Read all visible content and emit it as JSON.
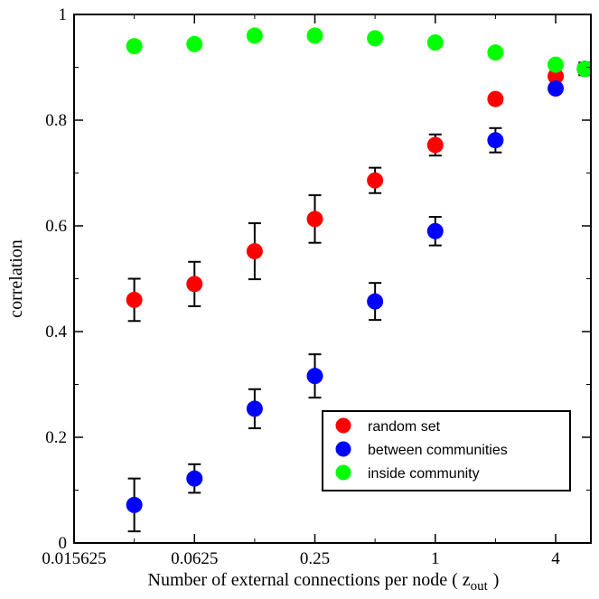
{
  "chart_data": {
    "type": "scatter",
    "title": "",
    "xlabel": "Number of external connections per node ( z",
    "xlabel_sub": "out",
    "xlabel_close": ")",
    "ylabel": "correlation",
    "xscale": "log2",
    "xlim": [
      0.015625,
      6
    ],
    "ylim": [
      0,
      1
    ],
    "xticks": [
      {
        "value": 0.015625,
        "label": "0.015625"
      },
      {
        "value": 0.0625,
        "label": "0.0625"
      },
      {
        "value": 0.25,
        "label": "0.25"
      },
      {
        "value": 1,
        "label": "1"
      },
      {
        "value": 4,
        "label": "4"
      }
    ],
    "yticks": [
      {
        "value": 0,
        "label": "0"
      },
      {
        "value": 0.2,
        "label": "0.2"
      },
      {
        "value": 0.4,
        "label": "0.4"
      },
      {
        "value": 0.6,
        "label": "0.6"
      },
      {
        "value": 0.8,
        "label": "0.8"
      },
      {
        "value": 1,
        "label": "1"
      }
    ],
    "grid": false,
    "legend_position": "bottom-right",
    "series": [
      {
        "name": "random set",
        "color": "#ff0000",
        "points": [
          {
            "x": 0.03125,
            "y": 0.46,
            "err": 0.04
          },
          {
            "x": 0.0625,
            "y": 0.49,
            "err": 0.042
          },
          {
            "x": 0.125,
            "y": 0.552,
            "err": 0.053
          },
          {
            "x": 0.25,
            "y": 0.613,
            "err": 0.045
          },
          {
            "x": 0.5,
            "y": 0.686,
            "err": 0.024
          },
          {
            "x": 1,
            "y": 0.753,
            "err": 0.02
          },
          {
            "x": 2,
            "y": 0.84,
            "err": 0.008
          },
          {
            "x": 4,
            "y": 0.883,
            "err": 0.007
          },
          {
            "x": 5.6,
            "y": 0.897,
            "err": 0.012
          }
        ]
      },
      {
        "name": "between communities",
        "color": "#0000ff",
        "points": [
          {
            "x": 0.03125,
            "y": 0.072,
            "err": 0.05
          },
          {
            "x": 0.0625,
            "y": 0.122,
            "err": 0.027
          },
          {
            "x": 0.125,
            "y": 0.254,
            "err": 0.037
          },
          {
            "x": 0.25,
            "y": 0.316,
            "err": 0.041
          },
          {
            "x": 0.5,
            "y": 0.457,
            "err": 0.035
          },
          {
            "x": 1,
            "y": 0.59,
            "err": 0.027
          },
          {
            "x": 2,
            "y": 0.762,
            "err": 0.023
          },
          {
            "x": 4,
            "y": 0.86,
            "err": 0.008
          },
          {
            "x": 5.6,
            "y": 0.897,
            "err": 0.01
          }
        ]
      },
      {
        "name": "inside community",
        "color": "#00ff00",
        "points": [
          {
            "x": 0.03125,
            "y": 0.94,
            "err": 0.005
          },
          {
            "x": 0.0625,
            "y": 0.944,
            "err": 0.005
          },
          {
            "x": 0.125,
            "y": 0.96,
            "err": 0.004
          },
          {
            "x": 0.25,
            "y": 0.96,
            "err": 0.004
          },
          {
            "x": 0.5,
            "y": 0.955,
            "err": 0.004
          },
          {
            "x": 1,
            "y": 0.947,
            "err": 0.004
          },
          {
            "x": 2,
            "y": 0.928,
            "err": 0.005
          },
          {
            "x": 4,
            "y": 0.905,
            "err": 0.006
          },
          {
            "x": 5.6,
            "y": 0.897,
            "err": 0.008
          }
        ]
      }
    ]
  }
}
